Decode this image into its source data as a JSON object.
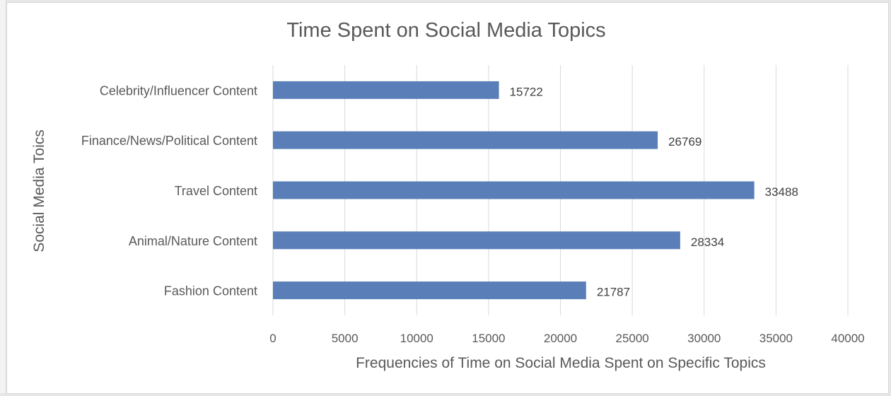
{
  "chart_data": {
    "type": "bar",
    "orientation": "horizontal",
    "title": "Time Spent on Social Media Topics",
    "xlabel": "Frequencies of Time on Social Media Spent on Specific Topics",
    "ylabel": "Social Media Toics",
    "categories": [
      "Celebrity/Influencer Content",
      "Finance/News/Political Content",
      "Travel Content",
      "Animal/Nature Content",
      "Fashion Content"
    ],
    "values": [
      15722,
      26769,
      33488,
      28334,
      21787
    ],
    "data_labels": [
      "15722",
      "26769",
      "33488",
      "28334",
      "21787"
    ],
    "xlim": [
      0,
      40000
    ],
    "x_ticks": [
      "0",
      "5000",
      "10000",
      "15000",
      "20000",
      "25000",
      "30000",
      "35000",
      "40000"
    ],
    "grid": true,
    "legend": "none",
    "bar_color": "#5a7fb8"
  }
}
